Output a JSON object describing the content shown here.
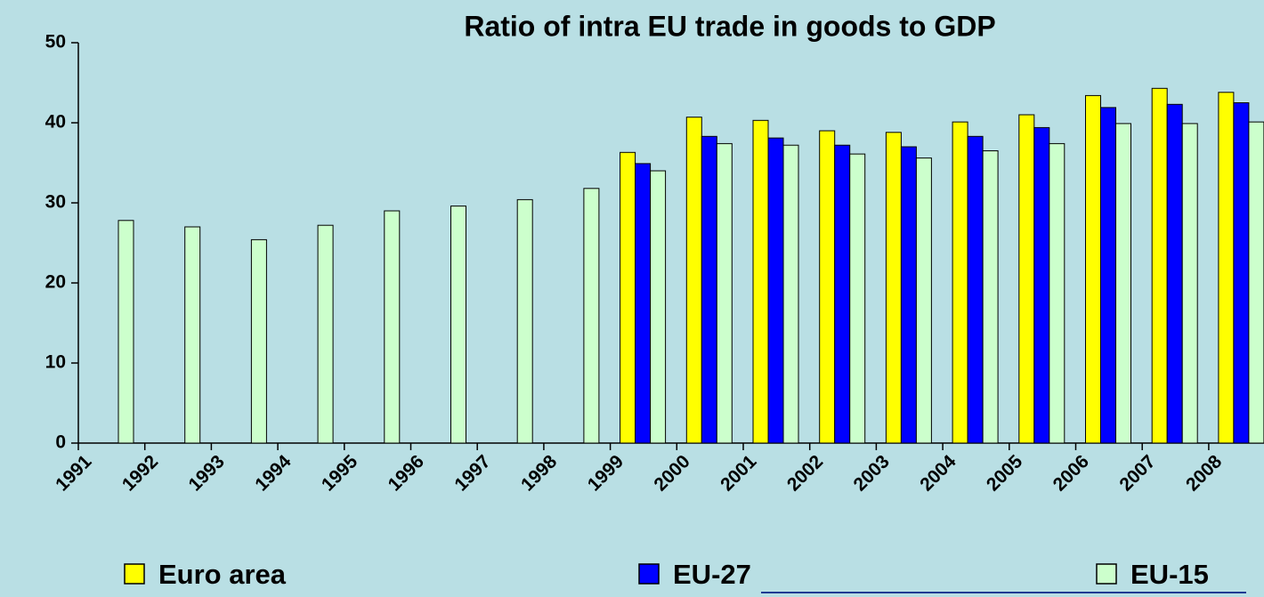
{
  "chart_data": {
    "type": "bar",
    "title": "Ratio of intra EU trade in goods to GDP",
    "categories": [
      "1991",
      "1992",
      "1993",
      "1994",
      "1995",
      "1996",
      "1997",
      "1998",
      "1999",
      "2000",
      "2001",
      "2002",
      "2003",
      "2004",
      "2005",
      "2006",
      "2007",
      "2008"
    ],
    "series": [
      {
        "name": "Euro area",
        "color": "#ffff00",
        "values": [
          null,
          null,
          null,
          null,
          null,
          null,
          null,
          null,
          36.3,
          40.7,
          40.3,
          39.0,
          38.8,
          40.1,
          41.0,
          43.4,
          44.3,
          43.8
        ]
      },
      {
        "name": "EU-27",
        "color": "#0000ff",
        "values": [
          null,
          null,
          null,
          null,
          null,
          null,
          null,
          null,
          34.9,
          38.3,
          38.1,
          37.2,
          37.0,
          38.3,
          39.4,
          41.9,
          42.3,
          42.5
        ]
      },
      {
        "name": "EU-15",
        "color": "#ccffcc",
        "values": [
          27.8,
          27.0,
          25.4,
          27.2,
          29.0,
          29.6,
          30.4,
          31.8,
          34.0,
          37.4,
          37.2,
          36.1,
          35.6,
          36.5,
          37.4,
          39.9,
          39.9,
          40.1
        ]
      }
    ],
    "ylim": [
      0,
      50
    ],
    "yticks": [
      0,
      10,
      20,
      30,
      40,
      50
    ],
    "grid": false
  }
}
